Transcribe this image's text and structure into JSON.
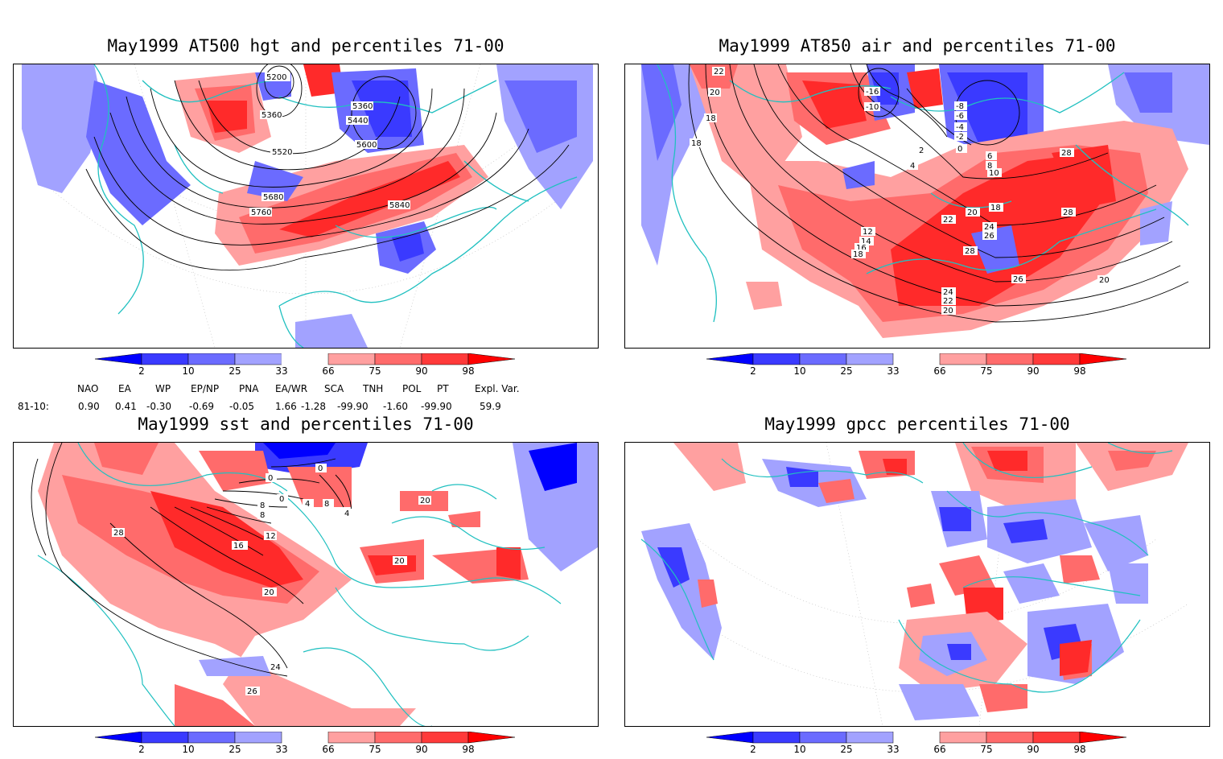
{
  "panels": [
    {
      "title": "May1999 AT500 hgt and percentiles 71-00",
      "contour_labels": [
        "5200",
        "5200",
        "5360",
        "5360",
        "5440",
        "5520",
        "5600",
        "5680",
        "5760",
        "5840"
      ]
    },
    {
      "title": "May1999 AT850 air and percentiles 71-00",
      "contour_labels": [
        "-10",
        "22",
        "20",
        "18",
        "18",
        "18",
        "-16",
        "-10",
        "-8",
        "-6",
        "-4",
        "-2",
        "0",
        "2",
        "4",
        "6",
        "8",
        "10",
        "18",
        "12",
        "14",
        "16",
        "18",
        "22",
        "20",
        "18",
        "24",
        "26",
        "28",
        "28",
        "28",
        "26",
        "24",
        "22",
        "20",
        "20"
      ]
    },
    {
      "title": "May1999 sst and percentiles 71-00",
      "contour_labels": [
        "0",
        "0",
        "0",
        "4",
        "8",
        "0",
        "4",
        "8",
        "12",
        "16",
        "20",
        "24",
        "26",
        "28",
        "28",
        "16",
        "20",
        "8",
        "20"
      ]
    },
    {
      "title": "May1999 gpcc percentiles 71-00",
      "contour_labels": []
    }
  ],
  "colorbar": {
    "ticks": [
      "2",
      "10",
      "25",
      "33",
      "66",
      "75",
      "90",
      "98"
    ],
    "colors": [
      "#0000ff",
      "#3a3aff",
      "#6b6bff",
      "#a2a2ff",
      "#ffffff",
      "#ffa0a0",
      "#ff6b6b",
      "#ff3a3a",
      "#ff0000"
    ]
  },
  "indices": {
    "header": [
      "NAO",
      "EA",
      "WP",
      "EP/NP",
      "PNA",
      "EA/WR",
      "SCA",
      "TNH",
      "POL",
      "PT",
      "Expl. Var."
    ],
    "row_label": "81-10:",
    "values": [
      "0.90",
      "0.41",
      "-0.30",
      "-0.69",
      "-0.05",
      "1.66",
      "-1.28",
      "-99.90",
      "-1.60",
      "-99.90",
      "59.9"
    ]
  },
  "colors": {
    "coast": "#20c0c0",
    "blue_strong": "#2020ff",
    "blue_mid": "#6b6bff",
    "blue_light": "#a2a2ff",
    "red_light": "#ffa0a0",
    "red_mid": "#ff6b6b",
    "red_strong": "#ff2a2a"
  }
}
